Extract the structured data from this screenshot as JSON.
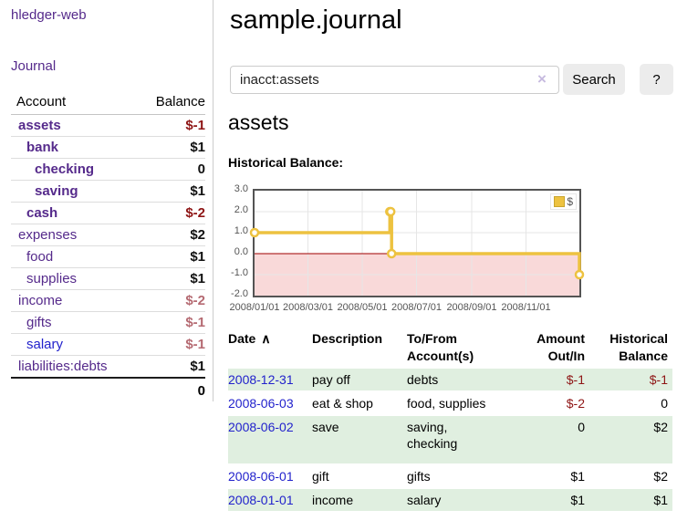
{
  "app": {
    "title": "hledger-web"
  },
  "sidebar": {
    "journal_link": "Journal",
    "accounts": {
      "col_account": "Account",
      "col_balance": "Balance",
      "rows": [
        {
          "name": "assets",
          "balance": "$-1"
        },
        {
          "name": "bank",
          "balance": "$1"
        },
        {
          "name": "checking",
          "balance": "0"
        },
        {
          "name": "saving",
          "balance": "$1"
        },
        {
          "name": "cash",
          "balance": "$-2"
        },
        {
          "name": "expenses",
          "balance": "$2"
        },
        {
          "name": "food",
          "balance": "$1"
        },
        {
          "name": "supplies",
          "balance": "$1"
        },
        {
          "name": "income",
          "balance": "$-2"
        },
        {
          "name": "gifts",
          "balance": "$-1"
        },
        {
          "name": "salary",
          "balance": "$-1"
        },
        {
          "name": "liabilities:debts",
          "balance": "$1"
        }
      ],
      "total": "0"
    }
  },
  "main": {
    "title": "sample.journal",
    "search": {
      "value": "inacct:assets",
      "clear_icon": "×",
      "search_button": "Search",
      "help_button": "?"
    },
    "account_heading": "assets",
    "chart_title": "Historical Balance:"
  },
  "chart_data": {
    "type": "line",
    "step": true,
    "title": "Historical Balance:",
    "x": [
      "2008-01-01",
      "2008-06-01",
      "2008-06-02",
      "2008-06-03",
      "2008-12-31"
    ],
    "series": [
      {
        "name": "$",
        "color": "#edc240",
        "values": [
          1,
          2,
          2,
          0,
          -1
        ]
      }
    ],
    "xlim": [
      "2008-01-01",
      "2008-12-31"
    ],
    "ylim": [
      -2,
      3
    ],
    "yticks": [
      3.0,
      2.0,
      1.0,
      0.0,
      -1.0,
      -2.0
    ],
    "xticks": [
      "2008/01/01",
      "2008/03/01",
      "2008/05/01",
      "2008/07/01",
      "2008/09/01",
      "2008/11/01"
    ],
    "legend": {
      "position": "top-right",
      "label": "$"
    },
    "grid": true,
    "grid_color": "#e6e6e6",
    "negative_region_color": "#f9d9d9",
    "zero_line_color": "#a00000",
    "border_color": "#545454"
  },
  "register": {
    "headers": {
      "date": "Date",
      "sort_icon": "∧",
      "description": "Description",
      "accounts": "To/From Account(s)",
      "amount": "Amount Out/In",
      "balance": "Historical Balance"
    },
    "rows": [
      {
        "date": "2008-12-31",
        "description": "pay off",
        "accounts": "debts",
        "amount": "$-1",
        "balance": "$-1"
      },
      {
        "date": "2008-06-03",
        "description": "eat & shop",
        "accounts": "food, supplies",
        "amount": "$-2",
        "balance": "0"
      },
      {
        "date": "2008-06-02",
        "description": "save",
        "accounts": "saving, checking",
        "amount": "0",
        "balance": "$2"
      },
      {
        "date": "2008-06-01",
        "description": "gift",
        "accounts": "gifts",
        "amount": "$1",
        "balance": "$2"
      },
      {
        "date": "2008-01-01",
        "description": "income",
        "accounts": "salary",
        "amount": "$1",
        "balance": "$1"
      }
    ]
  }
}
